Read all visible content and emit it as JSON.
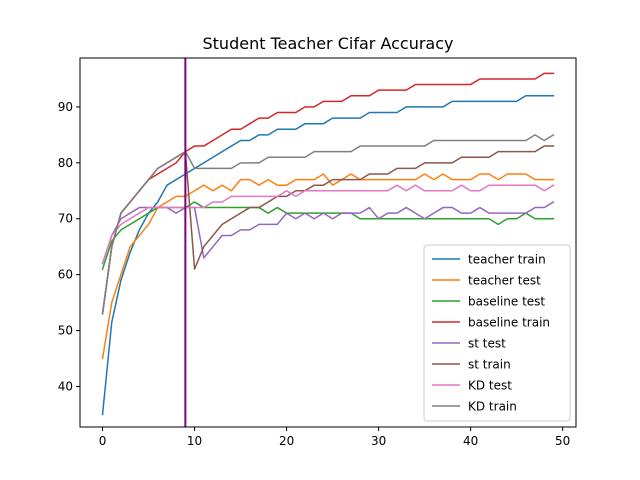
{
  "chart_data": {
    "type": "line",
    "title": "Student Teacher Cifar Accuracy",
    "xlabel": "",
    "ylabel": "",
    "xlim": [
      -2.45,
      51.45
    ],
    "ylim": [
      32.75,
      98.75
    ],
    "xticks": [
      0,
      10,
      20,
      30,
      40,
      50
    ],
    "yticks": [
      40,
      50,
      60,
      70,
      80,
      90
    ],
    "grid": false,
    "legend_position": "lower-right",
    "vline": {
      "x": 9,
      "color": "#800080"
    },
    "x": [
      0,
      1,
      2,
      3,
      4,
      5,
      6,
      7,
      8,
      9,
      10,
      11,
      12,
      13,
      14,
      15,
      16,
      17,
      18,
      19,
      20,
      21,
      22,
      23,
      24,
      25,
      26,
      27,
      28,
      29,
      30,
      31,
      32,
      33,
      34,
      35,
      36,
      37,
      38,
      39,
      40,
      41,
      42,
      43,
      44,
      45,
      46,
      47,
      48,
      49
    ],
    "series": [
      {
        "name": "teacher train",
        "color": "#1f77b4",
        "values": [
          35,
          51.5,
          59,
          64,
          68,
          71,
          73,
          76,
          77,
          78,
          79,
          80,
          81,
          82,
          83,
          84,
          84,
          85,
          85,
          86,
          86,
          86,
          87,
          87,
          87,
          88,
          88,
          88,
          88,
          89,
          89,
          89,
          89,
          90,
          90,
          90,
          90,
          90,
          91,
          91,
          91,
          91,
          91,
          91,
          91,
          91,
          92,
          92,
          92,
          92
        ]
      },
      {
        "name": "teacher test",
        "color": "#ff7f0e",
        "values": [
          45,
          55,
          60,
          65,
          67,
          69,
          72,
          73,
          74,
          74,
          75,
          76,
          75,
          76,
          75,
          77,
          77,
          76,
          77,
          76,
          76,
          77,
          77,
          77,
          78,
          76,
          77,
          78,
          77,
          77,
          77,
          77,
          77,
          77,
          77,
          78,
          77,
          78,
          77,
          77,
          77,
          78,
          78,
          77,
          78,
          78,
          78,
          77,
          77,
          77
        ]
      },
      {
        "name": "baseline test",
        "color": "#2ca02c",
        "values": [
          61,
          66,
          68,
          69,
          70,
          71,
          72,
          72,
          72,
          72,
          73,
          72,
          72,
          72,
          72,
          72,
          72,
          72,
          71,
          72,
          71,
          71,
          71,
          71,
          71,
          71,
          71,
          71,
          70,
          70,
          70,
          70,
          70,
          70,
          70,
          70,
          70,
          70,
          70,
          70,
          70,
          70,
          70,
          69,
          70,
          70,
          71,
          70,
          70,
          70
        ]
      },
      {
        "name": "baseline train",
        "color": "#d62728",
        "values": [
          53,
          65,
          71,
          73,
          75,
          77,
          78,
          79,
          80,
          82,
          83,
          83,
          84,
          85,
          86,
          86,
          87,
          88,
          88,
          89,
          89,
          89,
          90,
          90,
          91,
          91,
          91,
          92,
          92,
          92,
          93,
          93,
          93,
          93,
          94,
          94,
          94,
          94,
          94,
          94,
          94,
          95,
          95,
          95,
          95,
          95,
          95,
          95,
          96,
          96
        ]
      },
      {
        "name": "st test",
        "color": "#9467bd",
        "values": [
          62,
          67,
          70,
          71,
          72,
          72,
          72,
          72,
          71,
          72,
          72,
          63,
          65,
          67,
          67,
          68,
          68,
          69,
          69,
          69,
          71,
          70,
          71,
          70,
          71,
          70,
          71,
          71,
          71,
          72,
          70,
          71,
          71,
          72,
          71,
          70,
          71,
          72,
          72,
          71,
          71,
          72,
          71,
          71,
          71,
          71,
          71,
          72,
          72,
          73
        ]
      },
      {
        "name": "st train",
        "color": "#8c564b",
        "values": [
          53,
          65,
          71,
          73,
          75,
          77,
          79,
          80,
          81,
          82,
          61,
          65,
          67,
          69,
          70,
          71,
          72,
          72,
          73,
          74,
          74,
          75,
          75,
          76,
          76,
          77,
          77,
          77,
          77,
          78,
          78,
          78,
          79,
          79,
          79,
          80,
          80,
          80,
          80,
          81,
          81,
          81,
          81,
          82,
          82,
          82,
          82,
          82,
          83,
          83
        ]
      },
      {
        "name": "KD test",
        "color": "#e377c2",
        "values": [
          62,
          67,
          69,
          70,
          71,
          72,
          72,
          72,
          72,
          72,
          72,
          72,
          73,
          73,
          74,
          74,
          74,
          74,
          74,
          74,
          75,
          74,
          75,
          75,
          75,
          75,
          75,
          75,
          75,
          75,
          75,
          75,
          76,
          75,
          76,
          75,
          75,
          75,
          75,
          76,
          75,
          75,
          76,
          76,
          76,
          76,
          76,
          76,
          75,
          76
        ]
      },
      {
        "name": "KD train",
        "color": "#7f7f7f",
        "values": [
          53,
          65,
          71,
          73,
          75,
          77,
          79,
          80,
          81,
          82,
          79,
          79,
          79,
          79,
          79,
          80,
          80,
          80,
          81,
          81,
          81,
          81,
          81,
          82,
          82,
          82,
          82,
          82,
          83,
          83,
          83,
          83,
          83,
          83,
          83,
          83,
          84,
          84,
          84,
          84,
          84,
          84,
          84,
          84,
          84,
          84,
          84,
          85,
          84,
          85
        ]
      }
    ]
  }
}
